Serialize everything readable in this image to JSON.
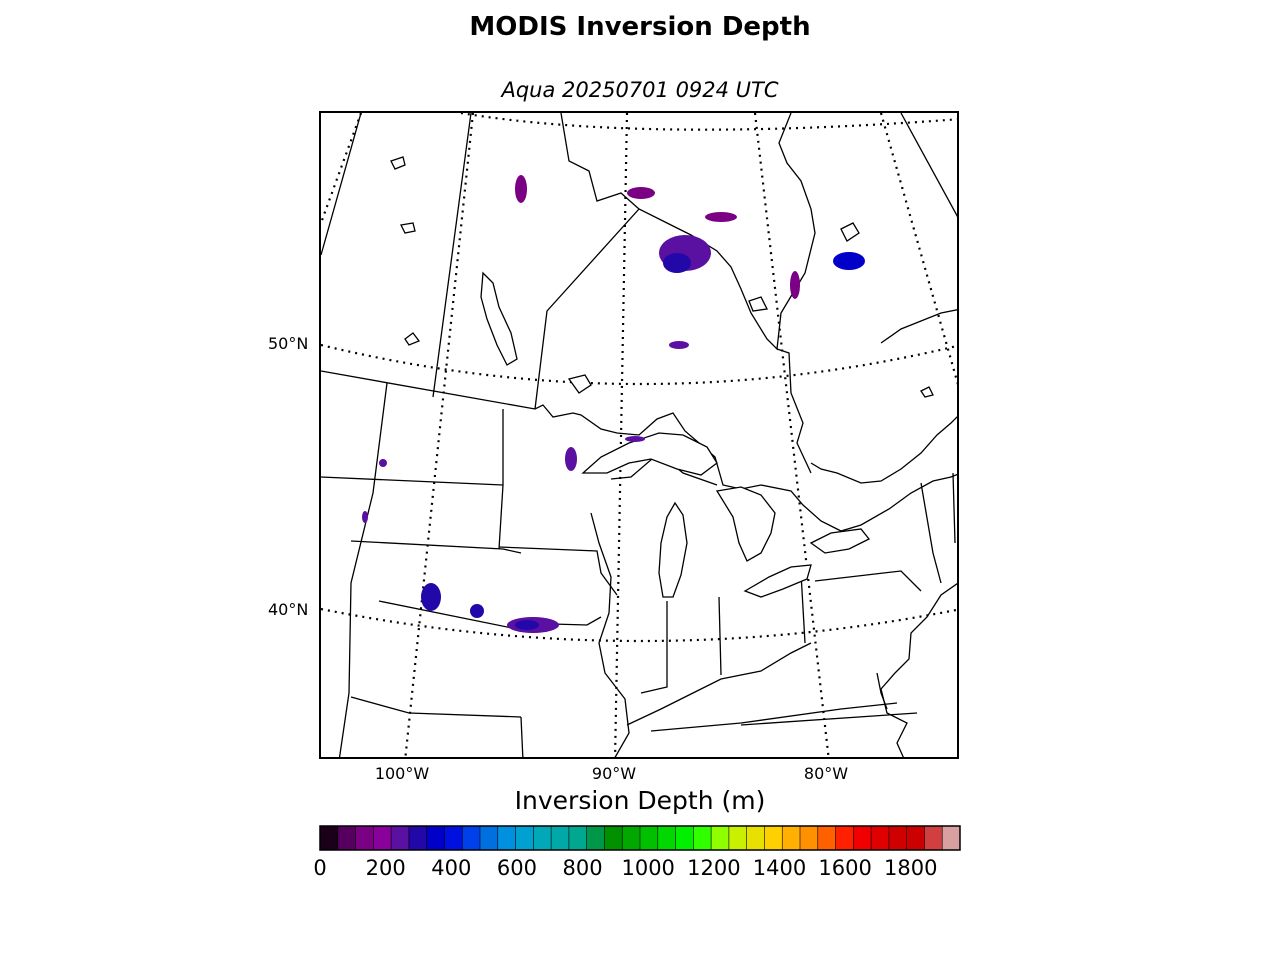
{
  "title": "MODIS Inversion Depth",
  "subtitle": "Aqua 20250701 0924 UTC",
  "map": {
    "lat_labels": [
      "50°N",
      "40°N"
    ],
    "lon_labels": [
      "100°W",
      "90°W",
      "80°W"
    ]
  },
  "colorbar": {
    "label": "Inversion Depth (m)",
    "ticks": [
      "0",
      "200",
      "400",
      "600",
      "800",
      "1000",
      "1200",
      "1400",
      "1600",
      "1800"
    ],
    "range": [
      0,
      1950
    ],
    "colors": [
      "#1a0018",
      "#55005f",
      "#7a0084",
      "#8a009a",
      "#5a10a0",
      "#2208a8",
      "#0000c8",
      "#0010e0",
      "#0040e8",
      "#0070e0",
      "#0090e0",
      "#00a0d0",
      "#00a8b8",
      "#00a8a8",
      "#00a890",
      "#009848",
      "#009000",
      "#00a800",
      "#00c000",
      "#00d800",
      "#00f000",
      "#30ff00",
      "#90ff00",
      "#c8f000",
      "#e8e000",
      "#ffd000",
      "#ffb000",
      "#ff9000",
      "#ff6000",
      "#ff2000",
      "#f00000",
      "#e00000",
      "#d00000",
      "#cc0000",
      "#d04040",
      "#d8a0a0"
    ]
  }
}
